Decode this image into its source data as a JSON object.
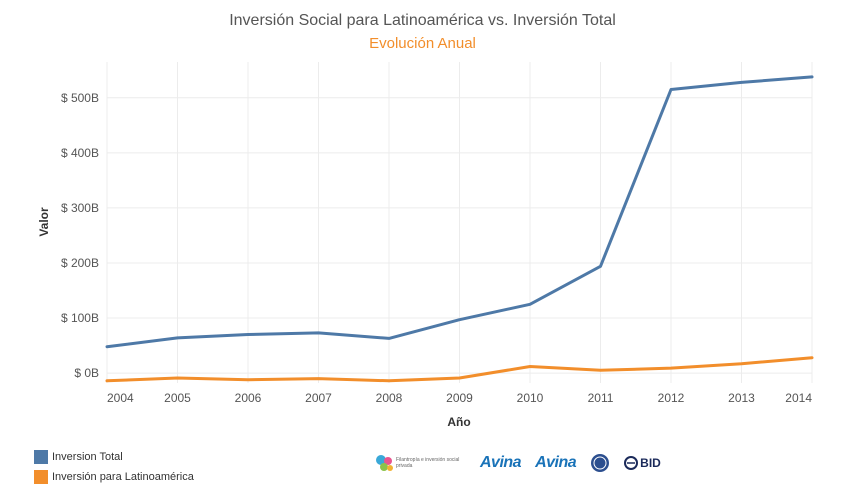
{
  "chart_data": {
    "type": "line",
    "title": "Inversión Social para Latinoamérica vs. Inversión Total",
    "subtitle": "Evolución Anual",
    "xlabel": "Año",
    "ylabel": "Valor",
    "x": [
      2004,
      2005,
      2006,
      2007,
      2008,
      2009,
      2010,
      2011,
      2012,
      2013,
      2014
    ],
    "x_ticks": [
      "2004",
      "2005",
      "2006",
      "2007",
      "2008",
      "2009",
      "2010",
      "2011",
      "2012",
      "2013",
      "2014"
    ],
    "y_ticks": [
      {
        "value": 0,
        "label": "$ 0B"
      },
      {
        "value": 100,
        "label": "$ 100B"
      },
      {
        "value": 200,
        "label": "$ 200B"
      },
      {
        "value": 300,
        "label": "$ 300B"
      },
      {
        "value": 400,
        "label": "$ 400B"
      },
      {
        "value": 500,
        "label": "$ 500B"
      }
    ],
    "ylim": [
      -18,
      565
    ],
    "grid": true,
    "legend_position": "bottom-left",
    "series": [
      {
        "name": "Inversion Total",
        "color": "#4e79a7",
        "values": [
          48,
          64,
          70,
          73,
          63,
          97,
          125,
          194,
          515,
          528,
          538
        ]
      },
      {
        "name": "Inversión para Latinoamérica",
        "color": "#f28e2b",
        "values": [
          -14,
          -9,
          -12,
          -10,
          -14,
          -9,
          12,
          5,
          9,
          17,
          28
        ]
      }
    ]
  },
  "colors": {
    "title": "#555555",
    "subtitle": "#f28e2b",
    "grid": "#ececec",
    "axis_text": "#555555"
  },
  "logos": {
    "filantropia": "Filantropía e inversión social privada",
    "avina_americas": "Avina",
    "avina_fundacion": "Avina",
    "bid": "BID"
  }
}
